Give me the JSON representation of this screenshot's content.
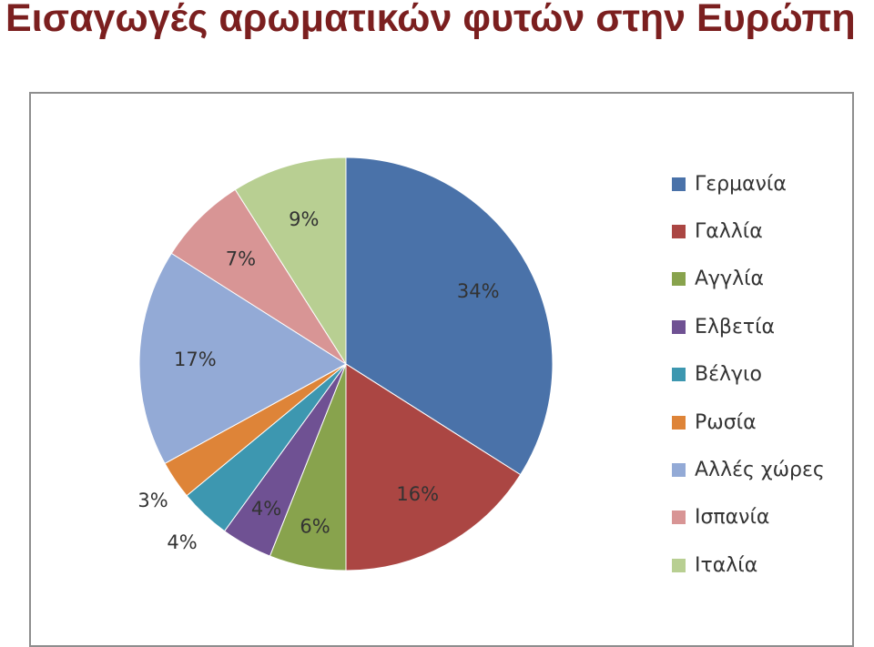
{
  "page": {
    "title": "Εισαγωγές αρωματικών φυτών στην Ευρώπη"
  },
  "chart_data": {
    "type": "pie",
    "title": "Εισαγωγές αρωματικών φυτών στην Ευρώπη",
    "categories": [
      "Γερμανία",
      "Γαλλία",
      "Αγγλία",
      "Ελβετία",
      "Βέλγιο",
      "Ρωσία",
      "Αλλές χώρες",
      "Ισπανία",
      "Ιταλία"
    ],
    "values": [
      34,
      16,
      6,
      4,
      4,
      3,
      17,
      7,
      9
    ],
    "labels": [
      "34%",
      "16%",
      "6%",
      "4%",
      "4%",
      "3%",
      "17%",
      "7%",
      "9%"
    ],
    "colors": [
      "#4a72a9",
      "#ab4643",
      "#88a34d",
      "#6f5193",
      "#3d97b0",
      "#de8438",
      "#93aad6",
      "#d89595",
      "#b8cf92"
    ],
    "start": "12 o'clock",
    "direction": "clockwise",
    "legend": "right"
  }
}
